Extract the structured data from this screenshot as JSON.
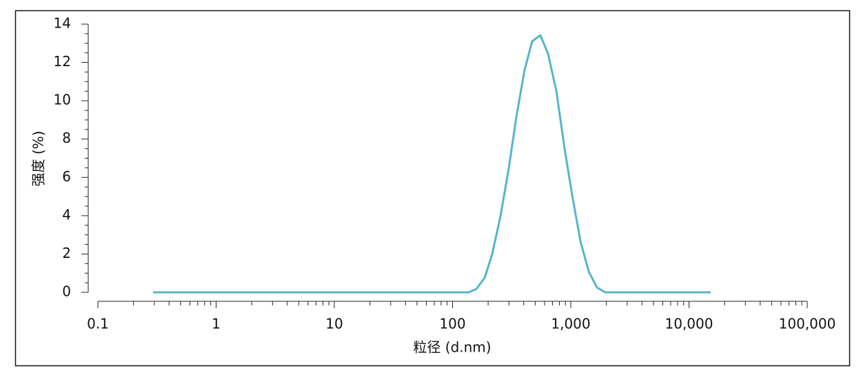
{
  "chart_data": {
    "type": "line",
    "xlabel": "粒径 (d.nm)",
    "ylabel": "强度 (%)",
    "x": [
      0.293,
      137,
      159,
      187,
      216,
      254,
      299,
      346,
      406,
      471,
      553,
      642,
      755,
      887,
      1028,
      1208,
      1419,
      1667,
      1959,
      15280
    ],
    "values": [
      0,
      0,
      0.18,
      0.76,
      1.98,
      3.96,
      6.48,
      9.14,
      11.59,
      13.1,
      13.42,
      12.45,
      10.51,
      7.48,
      5.07,
      2.66,
      1.08,
      0.25,
      0,
      0
    ],
    "color": "#56b4ca",
    "xscale": "log",
    "xlim": [
      0.1,
      100000
    ],
    "xticks": [
      0.1,
      1,
      10,
      100,
      {
        "value": 1000,
        "label": "1,000"
      },
      {
        "value": 10000,
        "label": "10,000"
      },
      {
        "value": 100000,
        "label": "100,000"
      }
    ],
    "ylim": [
      0,
      14
    ],
    "yticks": [
      0,
      2,
      4,
      6,
      8,
      10,
      12,
      14
    ],
    "grid": false
  }
}
